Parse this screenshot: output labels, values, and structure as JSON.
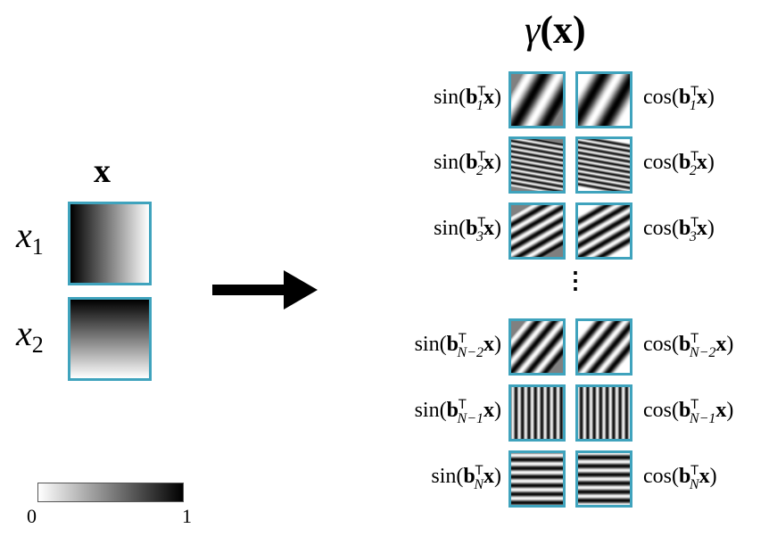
{
  "input": {
    "title": "x",
    "rows": [
      {
        "base": "x",
        "sub": "1"
      },
      {
        "base": "x",
        "sub": "2"
      }
    ]
  },
  "output": {
    "title_func": "γ",
    "title_arg": "(x)",
    "rows": [
      {
        "sub": "1",
        "orient": 30,
        "freq": 2
      },
      {
        "sub": "2",
        "orient": -80,
        "freq": 10
      },
      {
        "sub": "3",
        "orient": 60,
        "freq": 5
      },
      {
        "sub": "N−2",
        "orient": 40,
        "freq": 4
      },
      {
        "sub": "N−1",
        "orient": 0,
        "freq": 8
      },
      {
        "sub": "N",
        "orient": 90,
        "freq": 6
      }
    ],
    "sin_label": "sin",
    "cos_label": "cos",
    "vec": "b",
    "transpose": "T",
    "x": "x",
    "ellipsis": "⋮"
  },
  "colorbar": {
    "min_label": "0",
    "max_label": "1"
  },
  "colors": {
    "border": "#3fa3bd"
  }
}
